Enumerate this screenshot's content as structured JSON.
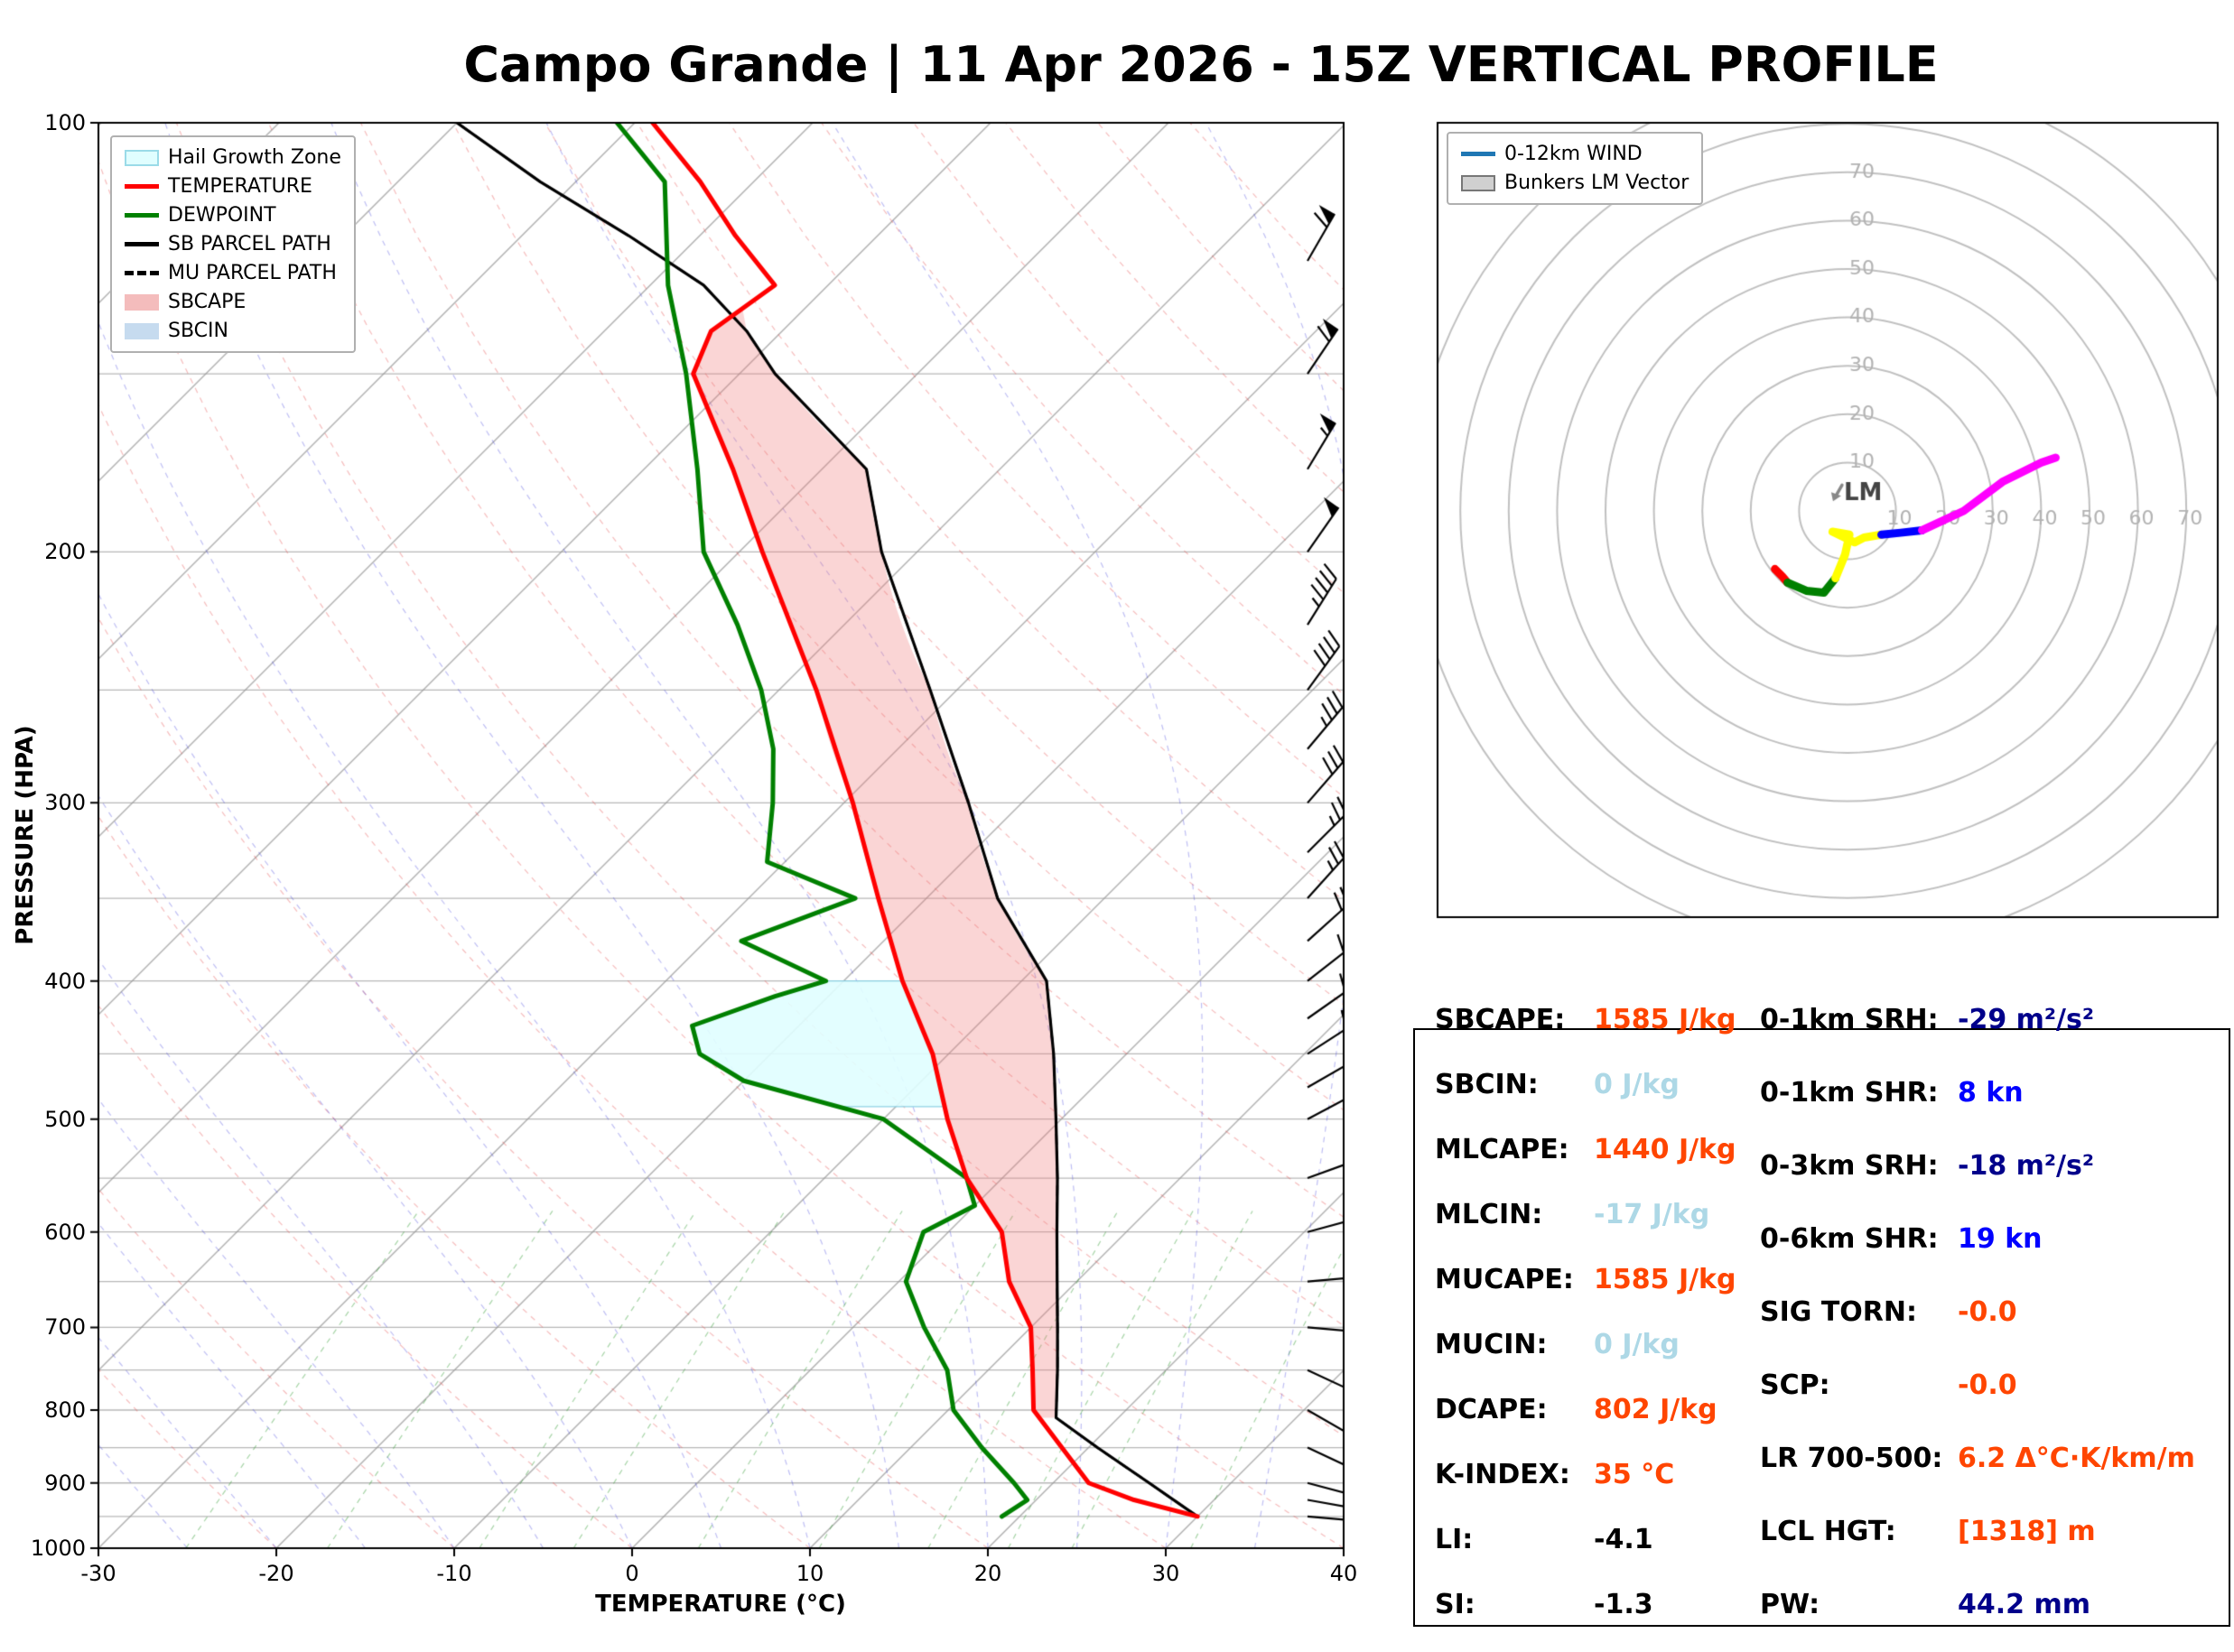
{
  "title": "Campo Grande | 11 Apr 2026 - 15Z VERTICAL PROFILE",
  "skewt": {
    "xlabel": "TEMPERATURE (°C)",
    "ylabel": "PRESSURE (HPA)",
    "x_ticks": [
      -30,
      -20,
      -10,
      0,
      10,
      20,
      30,
      40
    ],
    "y_ticks": [
      100,
      200,
      300,
      400,
      500,
      600,
      700,
      800,
      900,
      1000
    ],
    "legend": [
      {
        "label": "Hail Growth Zone",
        "type": "patch",
        "color": "#e0feff",
        "edge": "#9adbe8"
      },
      {
        "label": "TEMPERATURE",
        "type": "line",
        "color": "#ff0000"
      },
      {
        "label": "DEWPOINT",
        "type": "line",
        "color": "#008000"
      },
      {
        "label": "SB PARCEL PATH",
        "type": "line",
        "color": "#000000"
      },
      {
        "label": "MU PARCEL PATH",
        "type": "dashed",
        "color": "#000000"
      },
      {
        "label": "SBCAPE",
        "type": "patch",
        "color": "#f4bcbc",
        "edge": "#f4bcbc"
      },
      {
        "label": "SBCIN",
        "type": "patch",
        "color": "#c6dbef",
        "edge": "#c6dbef"
      }
    ]
  },
  "hodograph": {
    "legend": [
      {
        "label": "0-12km WIND",
        "type": "line",
        "color": "#1f77b4"
      },
      {
        "label": "Bunkers LM Vector",
        "type": "patch",
        "color": "#d0d0d0",
        "edge": "#777777"
      }
    ],
    "lm_label": "LM"
  },
  "chart_data": [
    {
      "type": "line",
      "name": "skewt_sounding",
      "title": "Campo Grande | 11 Apr 2026 - 15Z VERTICAL PROFILE",
      "xlabel": "TEMPERATURE (°C)",
      "ylabel": "PRESSURE (HPA)",
      "xlim": [
        -30,
        40
      ],
      "ylim": [
        1000,
        100
      ],
      "skew_deg": 45,
      "series": [
        {
          "name": "TEMPERATURE",
          "color": "#ff0000",
          "pressure": [
            950,
            925,
            900,
            850,
            800,
            750,
            700,
            650,
            600,
            550,
            500,
            450,
            400,
            350,
            300,
            250,
            225,
            200,
            175,
            150,
            140,
            130,
            120,
            110,
            100
          ],
          "values": [
            30,
            25.5,
            22,
            18.5,
            14.8,
            12.5,
            10,
            6.2,
            3,
            -2,
            -6.4,
            -10.9,
            -16.7,
            -22.7,
            -29.5,
            -37.9,
            -43,
            -48.7,
            -55,
            -62.6,
            -64,
            -63,
            -68,
            -73,
            -79
          ]
        },
        {
          "name": "DEWPOINT",
          "color": "#008000",
          "pressure": [
            950,
            925,
            900,
            850,
            800,
            750,
            700,
            650,
            600,
            575,
            550,
            500,
            470,
            450,
            430,
            410,
            400,
            375,
            350,
            330,
            300,
            275,
            250,
            225,
            200,
            175,
            150,
            130,
            110,
            100
          ],
          "values": [
            19,
            19.5,
            17.8,
            14,
            10.3,
            7.7,
            4,
            0.4,
            -1.4,
            0,
            -2,
            -10,
            -20,
            -24,
            -26,
            -23,
            -21,
            -28,
            -24,
            -31,
            -34,
            -37,
            -41,
            -46,
            -52,
            -57,
            -63,
            -69,
            -75,
            -81
          ]
        },
        {
          "name": "SB PARCEL PATH",
          "color": "#000000",
          "pressure": [
            950,
            900,
            850,
            810,
            750,
            700,
            650,
            600,
            550,
            500,
            450,
            400,
            350,
            300,
            250,
            200,
            175,
            150,
            140,
            130,
            120,
            110,
            100
          ],
          "values": [
            30,
            25.4,
            20.5,
            16.5,
            13.9,
            11.5,
            8.9,
            6.1,
            3.1,
            -0.3,
            -4.1,
            -8.6,
            -16,
            -23,
            -31.5,
            -42,
            -47.5,
            -58,
            -62,
            -67,
            -74,
            -82,
            -90
          ]
        },
        {
          "name": "MU PARCEL PATH",
          "color": "#000000",
          "dashed": true,
          "pressure": [
            950,
            900,
            850,
            810,
            750,
            700,
            650,
            600,
            550,
            500,
            450,
            400,
            350,
            300,
            250,
            200,
            175,
            150,
            140,
            130,
            120,
            110,
            100
          ],
          "values": [
            30,
            25.4,
            20.5,
            16.5,
            13.9,
            11.5,
            8.9,
            6.1,
            3.1,
            -0.3,
            -4.1,
            -8.6,
            -16,
            -23,
            -31.5,
            -42,
            -47.5,
            -58,
            -62,
            -67,
            -74,
            -82,
            -90
          ]
        }
      ],
      "fills": {
        "sbcape": {
          "label": "SBCAPE",
          "color": "rgba(240,128,128,0.33)",
          "p_top": 135,
          "p_bottom": 810
        },
        "sbcin": {
          "label": "SBCIN",
          "color": "rgba(158,202,225,0.5)",
          "p_top": null,
          "p_bottom": null
        },
        "hail_growth_zone": {
          "label": "Hail Growth Zone",
          "color": "rgba(224,254,255,0.9)",
          "p_top": 400,
          "p_bottom": 490
        }
      },
      "wind_barbs_units": "kn",
      "wind_barbs": [
        {
          "p": 950,
          "dir": 95,
          "spd": 3
        },
        {
          "p": 925,
          "dir": 100,
          "spd": 5
        },
        {
          "p": 900,
          "dir": 105,
          "spd": 5
        },
        {
          "p": 850,
          "dir": 115,
          "spd": 5
        },
        {
          "p": 800,
          "dir": 120,
          "spd": 5
        },
        {
          "p": 750,
          "dir": 115,
          "spd": 8
        },
        {
          "p": 700,
          "dir": 95,
          "spd": 8
        },
        {
          "p": 650,
          "dir": 85,
          "spd": 10
        },
        {
          "p": 600,
          "dir": 75,
          "spd": 10
        },
        {
          "p": 550,
          "dir": 70,
          "spd": 12
        },
        {
          "p": 500,
          "dir": 62,
          "spd": 15
        },
        {
          "p": 475,
          "dir": 60,
          "spd": 15
        },
        {
          "p": 450,
          "dir": 57,
          "spd": 18
        },
        {
          "p": 425,
          "dir": 55,
          "spd": 18
        },
        {
          "p": 400,
          "dir": 52,
          "spd": 20
        },
        {
          "p": 375,
          "dir": 48,
          "spd": 22
        },
        {
          "p": 350,
          "dir": 42,
          "spd": 25
        },
        {
          "p": 325,
          "dir": 45,
          "spd": 27
        },
        {
          "p": 300,
          "dir": 41,
          "spd": 30
        },
        {
          "p": 275,
          "dir": 40,
          "spd": 33
        },
        {
          "p": 250,
          "dir": 36,
          "spd": 38
        },
        {
          "p": 225,
          "dir": 32,
          "spd": 43
        },
        {
          "p": 200,
          "dir": 35,
          "spd": 48
        },
        {
          "p": 175,
          "dir": 31,
          "spd": 55
        },
        {
          "p": 150,
          "dir": 34,
          "spd": 62
        },
        {
          "p": 125,
          "dir": 30,
          "spd": 58
        },
        {
          "p": 100,
          "dir": 36,
          "spd": 52
        }
      ]
    },
    {
      "type": "line",
      "name": "hodograph",
      "units": "kn",
      "rings": [
        10,
        20,
        30,
        40,
        50,
        60,
        70
      ],
      "segments": [
        {
          "name": "0-1km",
          "color": "#ff0000",
          "u": [
            -15,
            -13.5,
            -12.4
          ],
          "v": [
            -12,
            -13.5,
            -14.8
          ]
        },
        {
          "name": "1-3km",
          "color": "#008000",
          "u": [
            -12.4,
            -8.5,
            -4.9,
            -2.5
          ],
          "v": [
            -14.8,
            -16.5,
            -16.9,
            -13.9
          ]
        },
        {
          "name": "3-6km",
          "color": "#ffff00",
          "u": [
            -2.5,
            -0.5,
            0.4,
            -3.1,
            1.5,
            3.4,
            7.0
          ],
          "v": [
            -13.9,
            -9,
            -4.9,
            -4.3,
            -6.5,
            -5.5,
            -4.9
          ]
        },
        {
          "name": "6-9km",
          "color": "#0000ff",
          "u": [
            7.0,
            11.0,
            15.4
          ],
          "v": [
            -4.9,
            -4.5,
            -4.0
          ]
        },
        {
          "name": "9-12km",
          "color": "#ff00ff",
          "u": [
            15.4,
            24,
            32,
            40,
            43
          ],
          "v": [
            -4,
            0,
            6,
            10,
            11
          ]
        }
      ],
      "lm_vector": {
        "u": -3,
        "v": 2,
        "label": "LM",
        "color": "#888888"
      }
    }
  ],
  "stats": {
    "left": [
      {
        "label": "SBCAPE:",
        "value": "1585 J/kg",
        "color": "#ff4500"
      },
      {
        "label": "SBCIN:",
        "value": "0 J/kg",
        "color": "#add8e6"
      },
      {
        "label": "MLCAPE:",
        "value": "1440 J/kg",
        "color": "#ff4500"
      },
      {
        "label": "MLCIN:",
        "value": "-17 J/kg",
        "color": "#add8e6"
      },
      {
        "label": "MUCAPE:",
        "value": "1585 J/kg",
        "color": "#ff4500"
      },
      {
        "label": "MUCIN:",
        "value": "0 J/kg",
        "color": "#add8e6"
      },
      {
        "label": "DCAPE:",
        "value": "802 J/kg",
        "color": "#ff4500"
      },
      {
        "label": "K-INDEX:",
        "value": "35 °C",
        "color": "#ff4500"
      },
      {
        "label": "LI:",
        "value": "-4.1",
        "color": "#000000"
      },
      {
        "label": "SI:",
        "value": "-1.3",
        "color": "#000000"
      }
    ],
    "right": [
      {
        "label": "0-1km SRH:",
        "value": "-29 m²/s²",
        "color": "#00008b"
      },
      {
        "label": "0-1km SHR:",
        "value": "8 kn",
        "color": "#0000ff"
      },
      {
        "label": "0-3km SRH:",
        "value": "-18 m²/s²",
        "color": "#00008b"
      },
      {
        "label": "0-6km SHR:",
        "value": "19 kn",
        "color": "#0000ff"
      },
      {
        "label": "SIG TORN:",
        "value": "-0.0",
        "color": "#ff4500"
      },
      {
        "label": "SCP:",
        "value": "-0.0",
        "color": "#ff4500"
      },
      {
        "label": "LR 700-500:",
        "value": "6.2 Δ°C·K/km/m",
        "color": "#ff4500"
      },
      {
        "label": "LCL HGT:",
        "value": "[1318] m",
        "color": "#ff4500"
      },
      {
        "label": "PW:",
        "value": "44.2 mm",
        "color": "#00008b"
      }
    ]
  }
}
